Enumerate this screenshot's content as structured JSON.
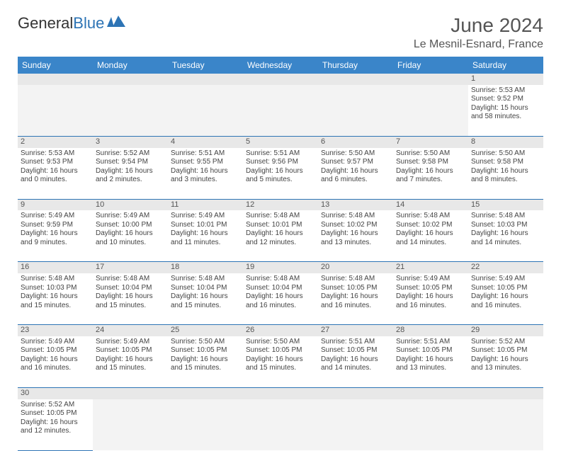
{
  "logo": {
    "text1": "General",
    "text2": "Blue"
  },
  "title": "June 2024",
  "location": "Le Mesnil-Esnard, France",
  "header_bg": "#3a85c9",
  "header_fg": "#ffffff",
  "daynum_bg": "#e8e8e8",
  "border_color": "#2d74b5",
  "days": [
    "Sunday",
    "Monday",
    "Tuesday",
    "Wednesday",
    "Thursday",
    "Friday",
    "Saturday"
  ],
  "weeks": [
    [
      null,
      null,
      null,
      null,
      null,
      null,
      {
        "n": "1",
        "sr": "5:53 AM",
        "ss": "9:52 PM",
        "dl": "15 hours and 58 minutes."
      }
    ],
    [
      {
        "n": "2",
        "sr": "5:53 AM",
        "ss": "9:53 PM",
        "dl": "16 hours and 0 minutes."
      },
      {
        "n": "3",
        "sr": "5:52 AM",
        "ss": "9:54 PM",
        "dl": "16 hours and 2 minutes."
      },
      {
        "n": "4",
        "sr": "5:51 AM",
        "ss": "9:55 PM",
        "dl": "16 hours and 3 minutes."
      },
      {
        "n": "5",
        "sr": "5:51 AM",
        "ss": "9:56 PM",
        "dl": "16 hours and 5 minutes."
      },
      {
        "n": "6",
        "sr": "5:50 AM",
        "ss": "9:57 PM",
        "dl": "16 hours and 6 minutes."
      },
      {
        "n": "7",
        "sr": "5:50 AM",
        "ss": "9:58 PM",
        "dl": "16 hours and 7 minutes."
      },
      {
        "n": "8",
        "sr": "5:50 AM",
        "ss": "9:58 PM",
        "dl": "16 hours and 8 minutes."
      }
    ],
    [
      {
        "n": "9",
        "sr": "5:49 AM",
        "ss": "9:59 PM",
        "dl": "16 hours and 9 minutes."
      },
      {
        "n": "10",
        "sr": "5:49 AM",
        "ss": "10:00 PM",
        "dl": "16 hours and 10 minutes."
      },
      {
        "n": "11",
        "sr": "5:49 AM",
        "ss": "10:01 PM",
        "dl": "16 hours and 11 minutes."
      },
      {
        "n": "12",
        "sr": "5:48 AM",
        "ss": "10:01 PM",
        "dl": "16 hours and 12 minutes."
      },
      {
        "n": "13",
        "sr": "5:48 AM",
        "ss": "10:02 PM",
        "dl": "16 hours and 13 minutes."
      },
      {
        "n": "14",
        "sr": "5:48 AM",
        "ss": "10:02 PM",
        "dl": "16 hours and 14 minutes."
      },
      {
        "n": "15",
        "sr": "5:48 AM",
        "ss": "10:03 PM",
        "dl": "16 hours and 14 minutes."
      }
    ],
    [
      {
        "n": "16",
        "sr": "5:48 AM",
        "ss": "10:03 PM",
        "dl": "16 hours and 15 minutes."
      },
      {
        "n": "17",
        "sr": "5:48 AM",
        "ss": "10:04 PM",
        "dl": "16 hours and 15 minutes."
      },
      {
        "n": "18",
        "sr": "5:48 AM",
        "ss": "10:04 PM",
        "dl": "16 hours and 15 minutes."
      },
      {
        "n": "19",
        "sr": "5:48 AM",
        "ss": "10:04 PM",
        "dl": "16 hours and 16 minutes."
      },
      {
        "n": "20",
        "sr": "5:48 AM",
        "ss": "10:05 PM",
        "dl": "16 hours and 16 minutes."
      },
      {
        "n": "21",
        "sr": "5:49 AM",
        "ss": "10:05 PM",
        "dl": "16 hours and 16 minutes."
      },
      {
        "n": "22",
        "sr": "5:49 AM",
        "ss": "10:05 PM",
        "dl": "16 hours and 16 minutes."
      }
    ],
    [
      {
        "n": "23",
        "sr": "5:49 AM",
        "ss": "10:05 PM",
        "dl": "16 hours and 16 minutes."
      },
      {
        "n": "24",
        "sr": "5:49 AM",
        "ss": "10:05 PM",
        "dl": "16 hours and 15 minutes."
      },
      {
        "n": "25",
        "sr": "5:50 AM",
        "ss": "10:05 PM",
        "dl": "16 hours and 15 minutes."
      },
      {
        "n": "26",
        "sr": "5:50 AM",
        "ss": "10:05 PM",
        "dl": "16 hours and 15 minutes."
      },
      {
        "n": "27",
        "sr": "5:51 AM",
        "ss": "10:05 PM",
        "dl": "16 hours and 14 minutes."
      },
      {
        "n": "28",
        "sr": "5:51 AM",
        "ss": "10:05 PM",
        "dl": "16 hours and 13 minutes."
      },
      {
        "n": "29",
        "sr": "5:52 AM",
        "ss": "10:05 PM",
        "dl": "16 hours and 13 minutes."
      }
    ],
    [
      {
        "n": "30",
        "sr": "5:52 AM",
        "ss": "10:05 PM",
        "dl": "16 hours and 12 minutes."
      },
      null,
      null,
      null,
      null,
      null,
      null
    ]
  ],
  "labels": {
    "sunrise": "Sunrise:",
    "sunset": "Sunset:",
    "daylight": "Daylight:"
  }
}
